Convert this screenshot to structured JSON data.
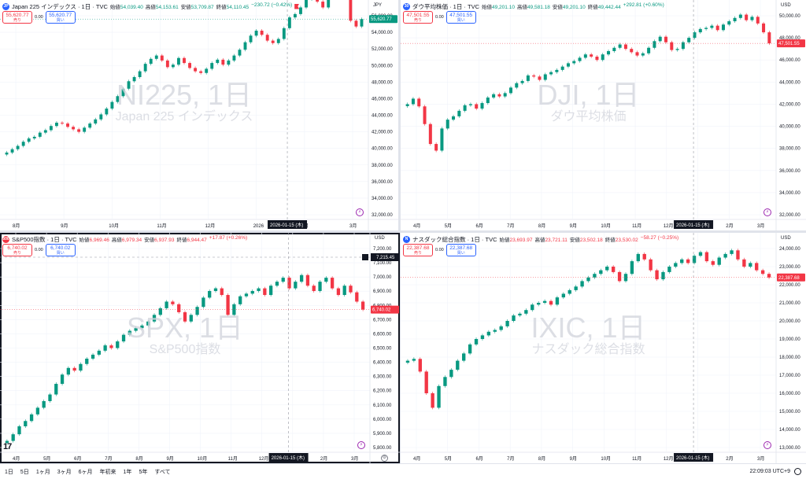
{
  "panes": [
    {
      "id": "nikkei",
      "active": false,
      "logo": {
        "text": "JP",
        "color": "#2962ff"
      },
      "title": "Japan 225 インデックス · 1日 · TVC",
      "ohlc": {
        "open_label": "始値",
        "open": "54,039.40",
        "high_label": "高値",
        "high": "54,153.61",
        "low_label": "安値",
        "low": "53,709.87",
        "close_label": "終値",
        "close": "54,110.45",
        "change": "−230.72 (−0.42%)",
        "direction": "up"
      },
      "flag": true,
      "sell": {
        "price": "55,620.77",
        "label": "売り"
      },
      "buy": {
        "price": "55,620.77",
        "label": "買い"
      },
      "spread": "0.00",
      "watermark": {
        "big": "NI225, 1日",
        "small": "Japan 225 インデックス"
      },
      "unit": "JPY",
      "price_tag": {
        "text": "55,620.77",
        "color": "#089981"
      },
      "axis": {
        "min": 32000,
        "max": 56000,
        "ticks": [
          "56,000.00",
          "54,000.00",
          "52,000.00",
          "50,000.00",
          "48,000.00",
          "46,000.00",
          "44,000.00",
          "42,000.00",
          "40,000.00",
          "38,000.00",
          "36,000.00",
          "34,000.00",
          "32,000.00"
        ],
        "months": [
          "8月",
          "9月",
          "10月",
          "11月",
          "12月",
          "2026",
          "2月",
          "3月"
        ],
        "crosshair_date": "2026-01-15 (木)"
      },
      "series": [
        39500,
        39900,
        40300,
        40800,
        41200,
        41400,
        41900,
        42200,
        42700,
        43100,
        43000,
        42600,
        42300,
        42000,
        42500,
        43000,
        43500,
        44100,
        44800,
        45600,
        46300,
        47200,
        48100,
        48600,
        49300,
        50200,
        50800,
        51200,
        50600,
        49800,
        50100,
        50900,
        50300,
        49700,
        49300,
        49100,
        49600,
        50300,
        50700,
        50100,
        50600,
        51200,
        51900,
        52800,
        53600,
        54200,
        53700,
        53000,
        52700,
        53200,
        54500,
        55800,
        56200,
        57000,
        58000,
        58500,
        57700,
        57000,
        58100,
        59200,
        59600,
        58300,
        55400,
        54700,
        55600
      ]
    },
    {
      "id": "dow",
      "active": false,
      "logo": {
        "text": "30",
        "color": "#2962ff"
      },
      "title": "ダウ平均株価 · 1日 · TVC",
      "ohlc": {
        "open_label": "始値",
        "open": "49,201.10",
        "high_label": "高値",
        "high": "49,581.18",
        "low_label": "安値",
        "low": "49,201.10",
        "close_label": "終値",
        "close": "49,442.44",
        "change": "+292.81 (+0.60%)",
        "direction": "up"
      },
      "flag": false,
      "sell": {
        "price": "47,501.55",
        "label": "売り"
      },
      "buy": {
        "price": "47,501.55",
        "label": "買い"
      },
      "spread": "0.00",
      "watermark": {
        "big": "DJI, 1日",
        "small": "ダウ平均株価"
      },
      "unit": "USD",
      "price_tag": {
        "text": "47,501.55",
        "color": "#f23645"
      },
      "axis": {
        "min": 32000,
        "max": 50000,
        "ticks": [
          "50,000.00",
          "48,000.00",
          "46,000.00",
          "44,000.00",
          "42,000.00",
          "40,000.00",
          "38,000.00",
          "36,000.00",
          "34,000.00",
          "32,000.00"
        ],
        "months": [
          "4月",
          "5月",
          "6月",
          "7月",
          "8月",
          "9月",
          "10月",
          "11月",
          "12月",
          "2026",
          "2月",
          "3月"
        ],
        "crosshair_date": "2026-01-15 (木)"
      },
      "series": [
        42000,
        42500,
        41800,
        40200,
        38400,
        37800,
        39800,
        40600,
        40900,
        41400,
        41900,
        42000,
        41600,
        42100,
        42600,
        42900,
        42700,
        43000,
        43500,
        43900,
        44100,
        44600,
        44500,
        44200,
        44700,
        44900,
        45100,
        45400,
        45700,
        45900,
        46200,
        46500,
        46300,
        46000,
        46500,
        46800,
        47100,
        47400,
        47000,
        46700,
        46400,
        46600,
        47100,
        47700,
        48100,
        47600,
        46900,
        47000,
        47600,
        48000,
        48500,
        48800,
        48900,
        49100,
        48700,
        49200,
        49500,
        49800,
        50100,
        49600,
        49900,
        49300,
        48500,
        47500
      ]
    },
    {
      "id": "spx",
      "active": true,
      "logo": {
        "text": "500",
        "color": "#f23645"
      },
      "title": "S&P500指数 · 1日 · TVC",
      "ohlc": {
        "open_label": "始値",
        "open": "6,969.46",
        "high_label": "高値",
        "high": "6,979.34",
        "low_label": "安値",
        "low": "6,937.93",
        "close_label": "終値",
        "close": "6,944.47",
        "change": "+17.87 (+0.26%)",
        "direction": "dn"
      },
      "flag": false,
      "sell": {
        "price": "6,740.02",
        "label": "売り"
      },
      "buy": {
        "price": "6,740.02",
        "label": "買い"
      },
      "spread": "0.00",
      "watermark": {
        "big": "SPX, 1日",
        "small": "S&P500指数"
      },
      "unit": "USD",
      "price_tag": {
        "text": "6,740.02",
        "color": "#f23645"
      },
      "high_tag": "7,215.45",
      "axis": {
        "min": 5700,
        "max": 7200,
        "ticks": [
          "7,200.00",
          "7,100.00",
          "7,000.00",
          "6,900.00",
          "6,800.00",
          "6,700.00",
          "6,600.00",
          "6,500.00",
          "6,400.00",
          "6,300.00",
          "6,200.00",
          "6,100.00",
          "6,000.00",
          "5,900.00",
          "5,800.00"
        ],
        "months": [
          "4月",
          "5月",
          "6月",
          "7月",
          "8月",
          "9月",
          "10月",
          "11月",
          "12月",
          "2026",
          "2月",
          "3月"
        ],
        "crosshair_date": "2026-01-15 (木)"
      },
      "series": [
        5750,
        5800,
        5860,
        5900,
        5950,
        6000,
        6050,
        6100,
        6180,
        6250,
        6300,
        6280,
        6330,
        6370,
        6400,
        6430,
        6470,
        6450,
        6500,
        6550,
        6580,
        6600,
        6620,
        6650,
        6700,
        6750,
        6800,
        6780,
        6720,
        6650,
        6700,
        6760,
        6830,
        6880,
        6900,
        6850,
        6700,
        6780,
        6840,
        6860,
        6880,
        6900,
        6850,
        6920,
        6950,
        6980,
        6900,
        6950,
        7000,
        6920,
        6880,
        6950,
        6980,
        6900,
        6850,
        6920,
        6870,
        6800,
        6740
      ]
    },
    {
      "id": "nasdaq",
      "active": false,
      "logo": {
        "text": "N",
        "color": "#2962ff"
      },
      "title": "ナスダック総合指数 · 1日 · TVC",
      "ohlc": {
        "open_label": "始値",
        "open": "23,693.97",
        "high_label": "高値",
        "high": "23,721.11",
        "low_label": "安値",
        "low": "23,502.18",
        "close_label": "終値",
        "close": "23,530.02",
        "change": "−58.27 (−0.25%)",
        "direction": "dn"
      },
      "flag": false,
      "sell": {
        "price": "22,387.68",
        "label": "売り"
      },
      "buy": {
        "price": "22,387.68",
        "label": "買い"
      },
      "spread": "0.00",
      "watermark": {
        "big": "IXIC, 1日",
        "small": "ナスダック総合指数"
      },
      "unit": "USD",
      "price_tag": {
        "text": "22,387.68",
        "color": "#f23645"
      },
      "axis": {
        "min": 13000,
        "max": 24000,
        "ticks": [
          "24,000.00",
          "23,000.00",
          "22,000.00",
          "21,000.00",
          "20,000.00",
          "19,000.00",
          "18,000.00",
          "17,000.00",
          "16,000.00",
          "15,000.00",
          "14,000.00",
          "13,000.00"
        ],
        "months": [
          "4月",
          "5月",
          "6月",
          "7月",
          "8月",
          "9月",
          "10月",
          "11月",
          "12月",
          "2026",
          "2月",
          "3月"
        ],
        "crosshair_date": "2026-01-15 (木)"
      },
      "series": [
        17800,
        17900,
        17200,
        16000,
        15200,
        16400,
        16900,
        17300,
        17800,
        18200,
        18700,
        19000,
        19200,
        19400,
        19500,
        19700,
        20000,
        20300,
        20400,
        20600,
        20900,
        21000,
        21100,
        20900,
        21300,
        21500,
        21700,
        21900,
        22200,
        22400,
        22600,
        22800,
        23000,
        22700,
        22200,
        22600,
        23300,
        23700,
        23400,
        22800,
        22300,
        22700,
        23000,
        23200,
        23400,
        23200,
        23600,
        23800,
        23300,
        23100,
        23500,
        23700,
        23900,
        23400,
        23000,
        23200,
        22800,
        22600,
        22400
      ]
    }
  ],
  "bottom_bar": {
    "timeframes": [
      "1日",
      "5日",
      "1ヶ月",
      "3ヶ月",
      "6ヶ月",
      "年初来",
      "1年",
      "5年",
      "すべて"
    ],
    "clock": "22:09:03 UTC+9"
  },
  "colors": {
    "up": "#089981",
    "down": "#f23645",
    "grid": "#f0f3fa"
  }
}
